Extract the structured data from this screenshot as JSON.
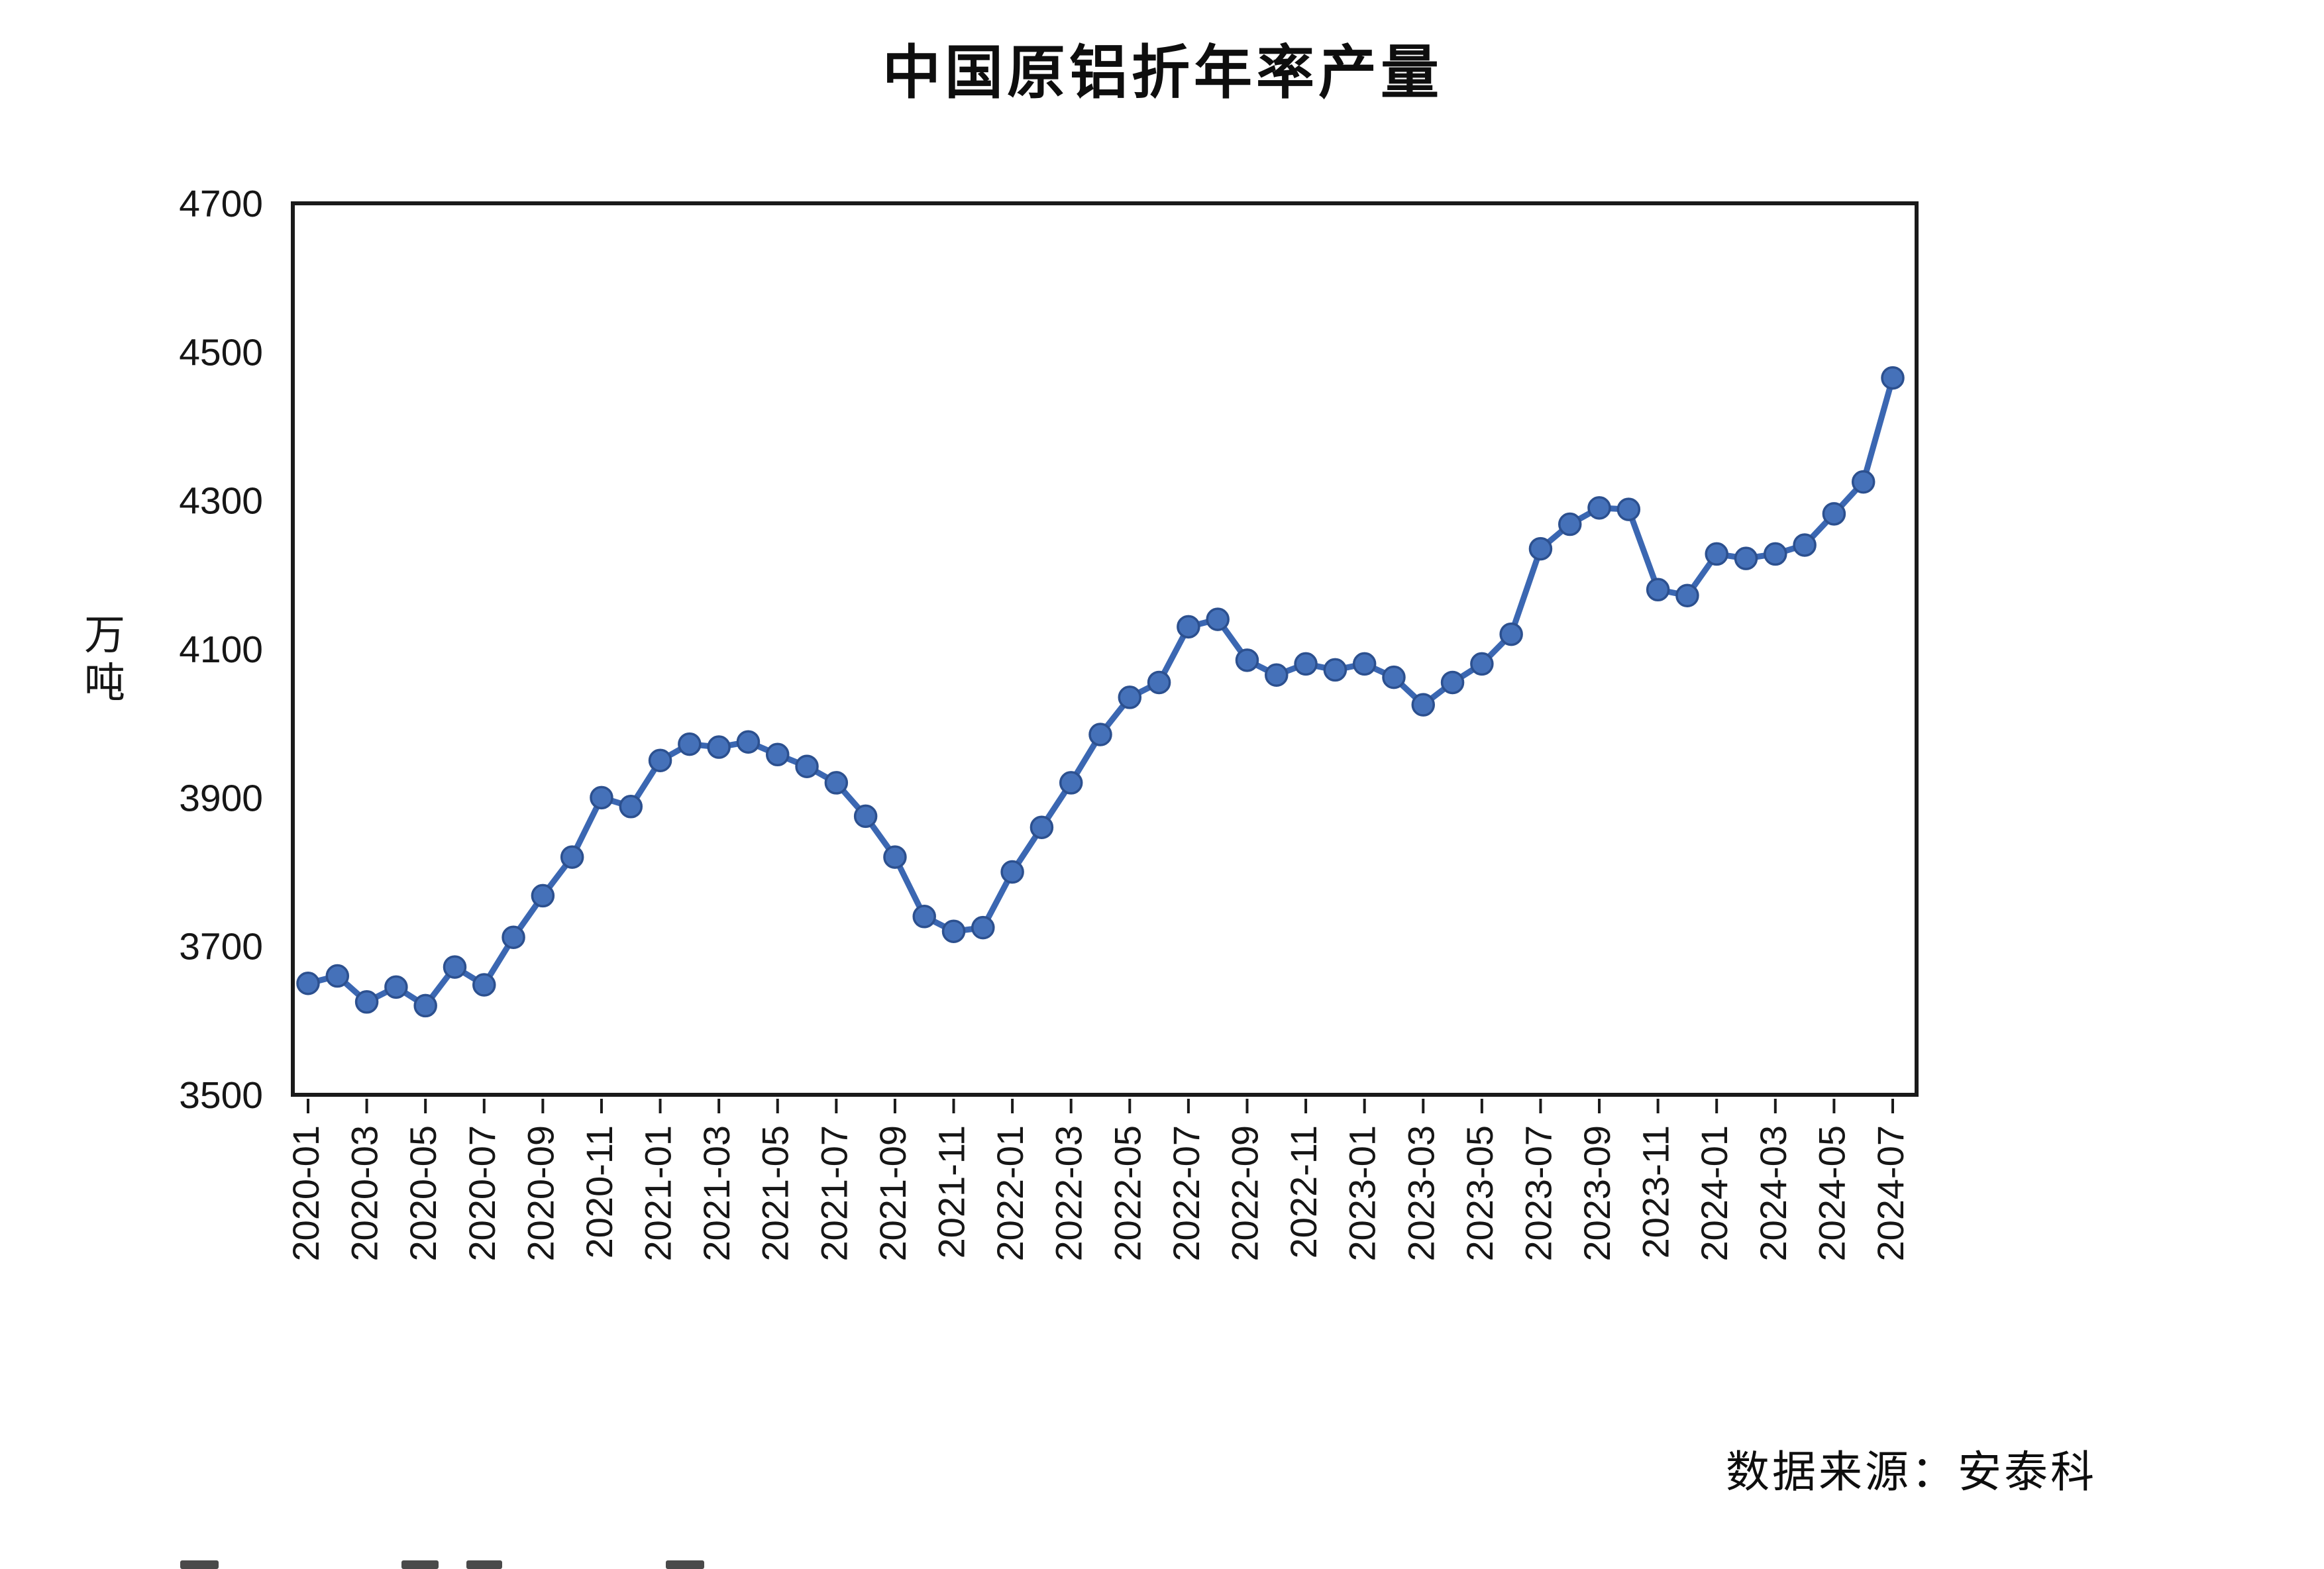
{
  "title": "中国原铝折年率产量",
  "source": "数据来源：安泰科",
  "colors": {
    "line": "#3b67b2",
    "marker_fill": "#4571b9",
    "marker_edge": "#2c508f",
    "axis": "#1a1a1a",
    "text": "#161616",
    "background": "#ffffff"
  },
  "chart_data": {
    "type": "line",
    "title": "中国原铝折年率产量",
    "xlabel": "",
    "ylabel": "万吨",
    "source": "数据来源：安泰科",
    "ylim": [
      3500,
      4700
    ],
    "y_ticks": [
      3500,
      3700,
      3900,
      4100,
      4300,
      4500,
      4700
    ],
    "grid": false,
    "legend": "none",
    "marker": "circle",
    "x_tick_labels": [
      "2020-01",
      "2020-03",
      "2020-05",
      "2020-07",
      "2020-09",
      "2020-11",
      "2021-01",
      "2021-03",
      "2021-05",
      "2021-07",
      "2021-09",
      "2021-11",
      "2022-01",
      "2022-03",
      "2022-05",
      "2022-07",
      "2022-09",
      "2022-11",
      "2023-01",
      "2023-03",
      "2023-05",
      "2023-07",
      "2023-09",
      "2023-11",
      "2024-01",
      "2024-03",
      "2024-05",
      "2024-07"
    ],
    "x": [
      "2020-01",
      "2020-02",
      "2020-03",
      "2020-04",
      "2020-05",
      "2020-06",
      "2020-07",
      "2020-08",
      "2020-09",
      "2020-10",
      "2020-11",
      "2020-12",
      "2021-01",
      "2021-02",
      "2021-03",
      "2021-04",
      "2021-05",
      "2021-06",
      "2021-07",
      "2021-08",
      "2021-09",
      "2021-10",
      "2021-11",
      "2021-12",
      "2022-01",
      "2022-02",
      "2022-03",
      "2022-04",
      "2022-05",
      "2022-06",
      "2022-07",
      "2022-08",
      "2022-09",
      "2022-10",
      "2022-11",
      "2022-12",
      "2023-01",
      "2023-02",
      "2023-03",
      "2023-04",
      "2023-05",
      "2023-06",
      "2023-07",
      "2023-08",
      "2023-09",
      "2023-10",
      "2023-11",
      "2023-12",
      "2024-01",
      "2024-02",
      "2024-03",
      "2024-04",
      "2024-05",
      "2024-06",
      "2024-07"
    ],
    "values": [
      3650,
      3660,
      3625,
      3645,
      3620,
      3672,
      3648,
      3712,
      3768,
      3820,
      3900,
      3888,
      3950,
      3972,
      3968,
      3975,
      3958,
      3942,
      3920,
      3875,
      3820,
      3740,
      3720,
      3725,
      3800,
      3860,
      3920,
      3985,
      4035,
      4055,
      4130,
      4140,
      4085,
      4065,
      4080,
      4072,
      4080,
      4062,
      4025,
      4055,
      4080,
      4120,
      4235,
      4268,
      4290,
      4288,
      4180,
      4172,
      4228,
      4222,
      4228,
      4240,
      4282,
      4325,
      4465
    ]
  }
}
